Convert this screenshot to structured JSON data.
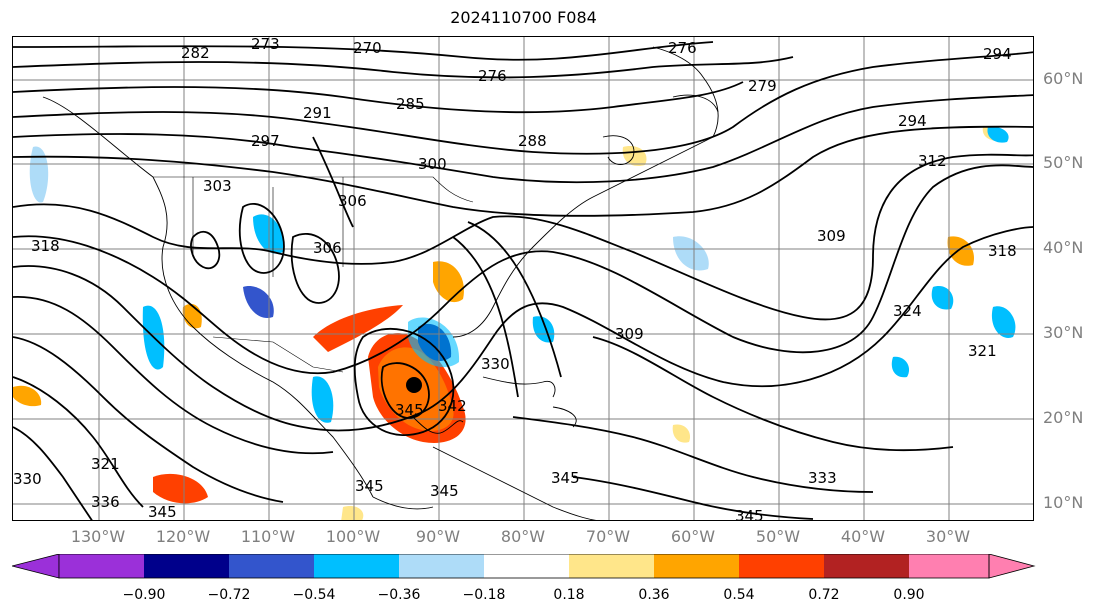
{
  "title": "2024110700 F084",
  "lat_labels": [
    "60°N",
    "50°N",
    "40°N",
    "30°N",
    "20°N",
    "10°N"
  ],
  "lon_labels": [
    "130°W",
    "120°W",
    "110°W",
    "100°W",
    "90°W",
    "80°W",
    "70°W",
    "60°W",
    "50°W",
    "40°W",
    "30°W"
  ],
  "colorbar": {
    "ticks": [
      "−0.90",
      "−0.72",
      "−0.54",
      "−0.36",
      "−0.18",
      "0.18",
      "0.36",
      "0.54",
      "0.72",
      "0.90"
    ],
    "colors": [
      "#9b30d9",
      "#00008b",
      "#3355cc",
      "#00bfff",
      "#aedcf8",
      "#ffffff",
      "#ffe68a",
      "#ffa500",
      "#ff4000",
      "#b22222",
      "#ff7fb0"
    ]
  },
  "contour_labels": [
    "282",
    "273",
    "270",
    "276",
    "294",
    "276",
    "279",
    "291",
    "285",
    "297",
    "288",
    "294",
    "300",
    "312",
    "303",
    "306",
    "306",
    "318",
    "318",
    "309",
    "309",
    "324",
    "321",
    "345",
    "342",
    "330",
    "330",
    "321",
    "336",
    "345",
    "345",
    "345",
    "345",
    "333",
    "345"
  ],
  "colors": {
    "frame": "#000000",
    "grid": "#808080",
    "axis_label": "#7f7f7f",
    "contour": "#000000"
  }
}
